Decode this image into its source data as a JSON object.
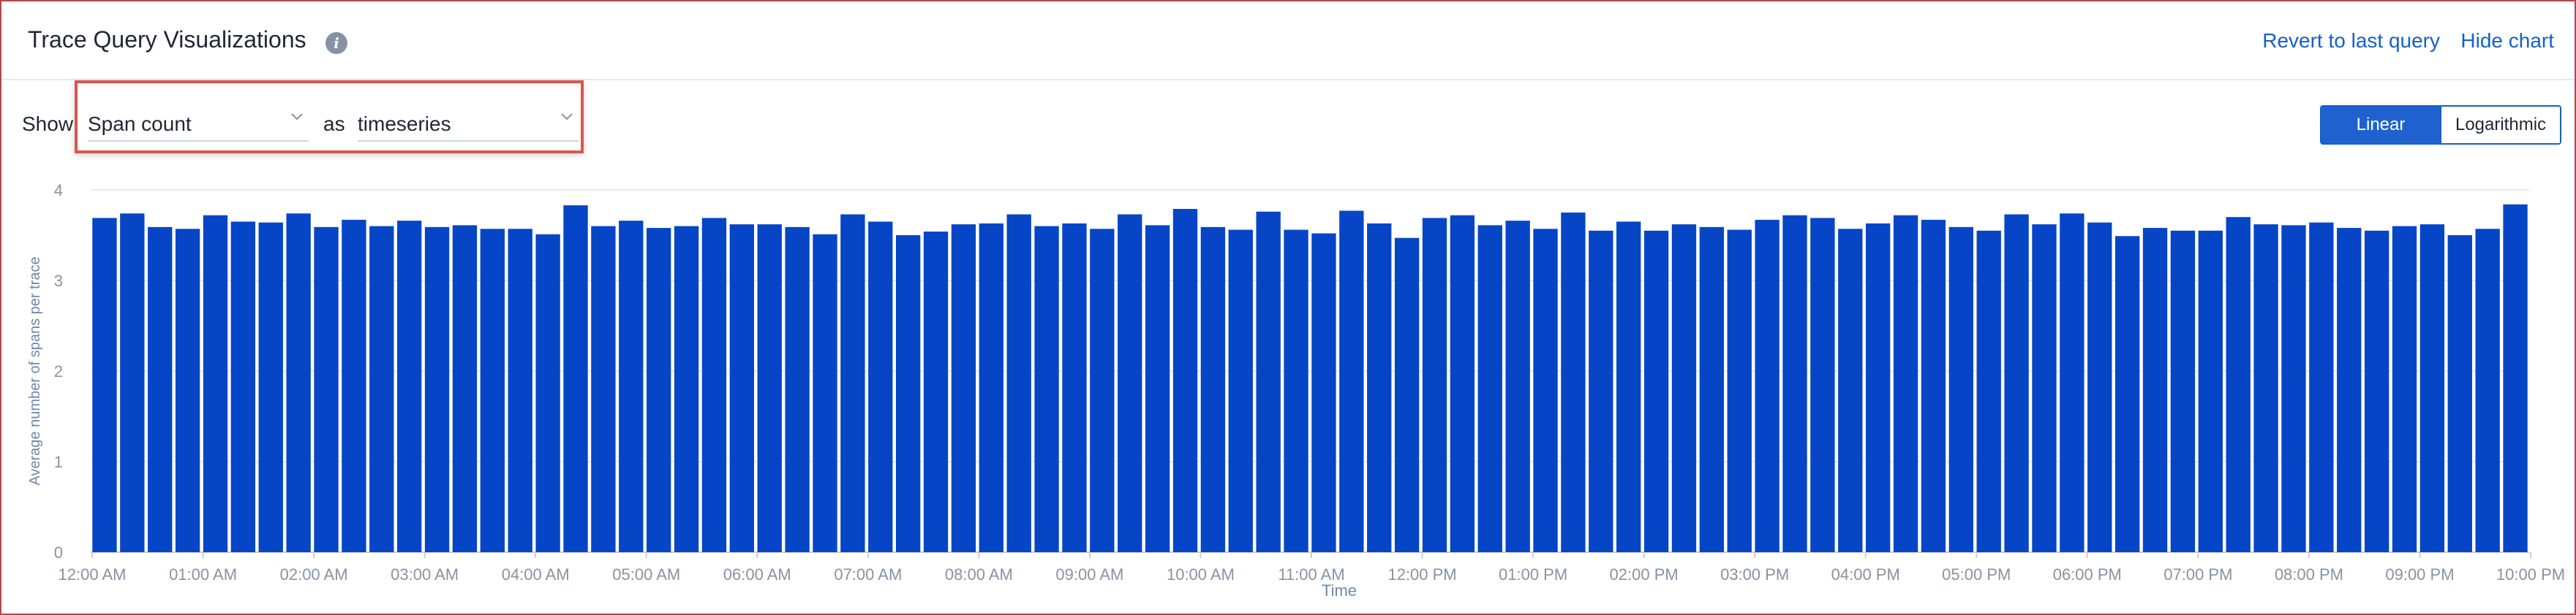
{
  "header": {
    "title": "Trace Query Visualizations",
    "info_icon": "info-icon",
    "revert_label": "Revert to last query",
    "hide_label": "Hide chart"
  },
  "controls": {
    "show_label": "Show",
    "metric_value": "Span count",
    "as_label": "as",
    "viz_value": "timeseries",
    "scale_options": [
      "Linear",
      "Logarithmic"
    ],
    "scale_selected": "Linear"
  },
  "colors": {
    "bar": "#0645c6",
    "accent": "#1560c9",
    "highlight": "#d9564e"
  },
  "chart_data": {
    "type": "bar",
    "xlabel": "Time",
    "ylabel": "Average number of spans per trace",
    "ylim": [
      0,
      4
    ],
    "yticks": [
      0,
      1,
      2,
      3,
      4
    ],
    "xticks": [
      "12:00 AM",
      "01:00 AM",
      "02:00 AM",
      "03:00 AM",
      "04:00 AM",
      "05:00 AM",
      "06:00 AM",
      "07:00 AM",
      "08:00 AM",
      "09:00 AM",
      "10:00 AM",
      "11:00 AM",
      "12:00 PM",
      "01:00 PM",
      "02:00 PM",
      "03:00 PM",
      "04:00 PM",
      "05:00 PM",
      "06:00 PM",
      "07:00 PM",
      "08:00 PM",
      "09:00 PM",
      "10:00 PM"
    ],
    "x_interval": "15 min",
    "values": [
      3.69,
      3.74,
      3.59,
      3.57,
      3.72,
      3.65,
      3.64,
      3.74,
      3.59,
      3.67,
      3.6,
      3.66,
      3.59,
      3.61,
      3.57,
      3.57,
      3.51,
      3.83,
      3.6,
      3.66,
      3.58,
      3.6,
      3.69,
      3.62,
      3.62,
      3.59,
      3.51,
      3.73,
      3.65,
      3.5,
      3.54,
      3.62,
      3.63,
      3.73,
      3.6,
      3.63,
      3.57,
      3.73,
      3.61,
      3.79,
      3.59,
      3.56,
      3.76,
      3.56,
      3.52,
      3.77,
      3.63,
      3.47,
      3.69,
      3.72,
      3.61,
      3.66,
      3.57,
      3.75,
      3.55,
      3.65,
      3.55,
      3.62,
      3.59,
      3.56,
      3.67,
      3.72,
      3.69,
      3.57,
      3.63,
      3.72,
      3.67,
      3.59,
      3.55,
      3.73,
      3.62,
      3.74,
      3.64,
      3.49,
      3.58,
      3.55,
      3.55,
      3.7,
      3.62,
      3.61,
      3.64,
      3.58,
      3.55,
      3.6,
      3.62,
      3.5,
      3.57,
      3.84
    ]
  }
}
